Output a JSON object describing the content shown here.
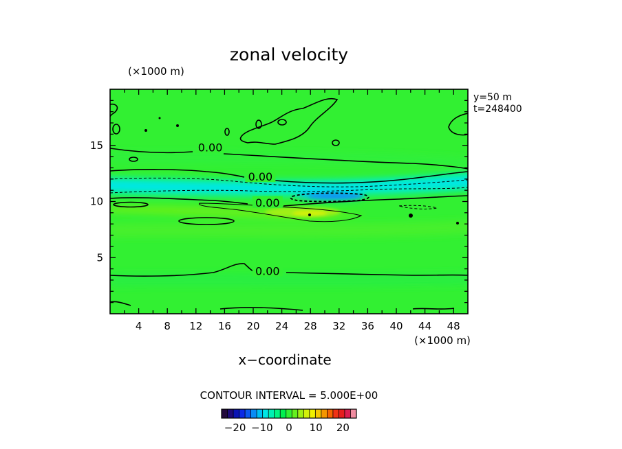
{
  "chart_data": {
    "type": "heatmap",
    "title": "zonal velocity",
    "xlabel": "x−coordinate",
    "x_unit": "(×1000 m)",
    "y_unit": "(×1000 m)",
    "info_lines": [
      "y=50  m",
      "t=248400"
    ],
    "xlim": [
      0,
      50
    ],
    "ylim": [
      0,
      20
    ],
    "x_ticks": [
      4,
      8,
      12,
      16,
      20,
      24,
      28,
      32,
      36,
      40,
      44,
      48
    ],
    "y_ticks": [
      5,
      10,
      15
    ],
    "contour_interval_text": "CONTOUR INTERVAL = 5.000E+00",
    "contour_labels": [
      {
        "text": "0.00",
        "x": 14,
        "y": 14.7
      },
      {
        "text": "0.00",
        "x": 21,
        "y": 12.1
      },
      {
        "text": "0.00",
        "x": 22,
        "y": 9.8
      },
      {
        "text": "0.00",
        "x": 22,
        "y": 3.7
      }
    ],
    "colorbar": {
      "range": [
        -25,
        25
      ],
      "ticks": [
        -20,
        -10,
        0,
        10,
        20
      ],
      "colors": [
        "#230a3c",
        "#1e0a78",
        "#0a14b4",
        "#0a2ae6",
        "#0a58f0",
        "#0a8cf5",
        "#00c0f5",
        "#00e6e6",
        "#00f0b4",
        "#00f582",
        "#00f050",
        "#32f032",
        "#64f01e",
        "#a0f014",
        "#d2f00a",
        "#f0f000",
        "#f5c800",
        "#f59600",
        "#f56400",
        "#f03214",
        "#e61e1e",
        "#dc1e50",
        "#f08ca0"
      ]
    },
    "zonal_velocity_bands": [
      {
        "y_range": [
          0,
          9
        ],
        "value": 1
      },
      {
        "y_range": [
          9,
          10
        ],
        "value": 4
      },
      {
        "y_range": [
          10,
          10.8
        ],
        "value": -3
      },
      {
        "y_range": [
          10.8,
          12.2
        ],
        "value": -7
      },
      {
        "y_range": [
          12.2,
          20
        ],
        "value": 1
      }
    ],
    "extremes": [
      {
        "x": 30,
        "y": 10.6,
        "value": -11
      },
      {
        "x": 31,
        "y": 9.2,
        "value": 7
      }
    ]
  }
}
